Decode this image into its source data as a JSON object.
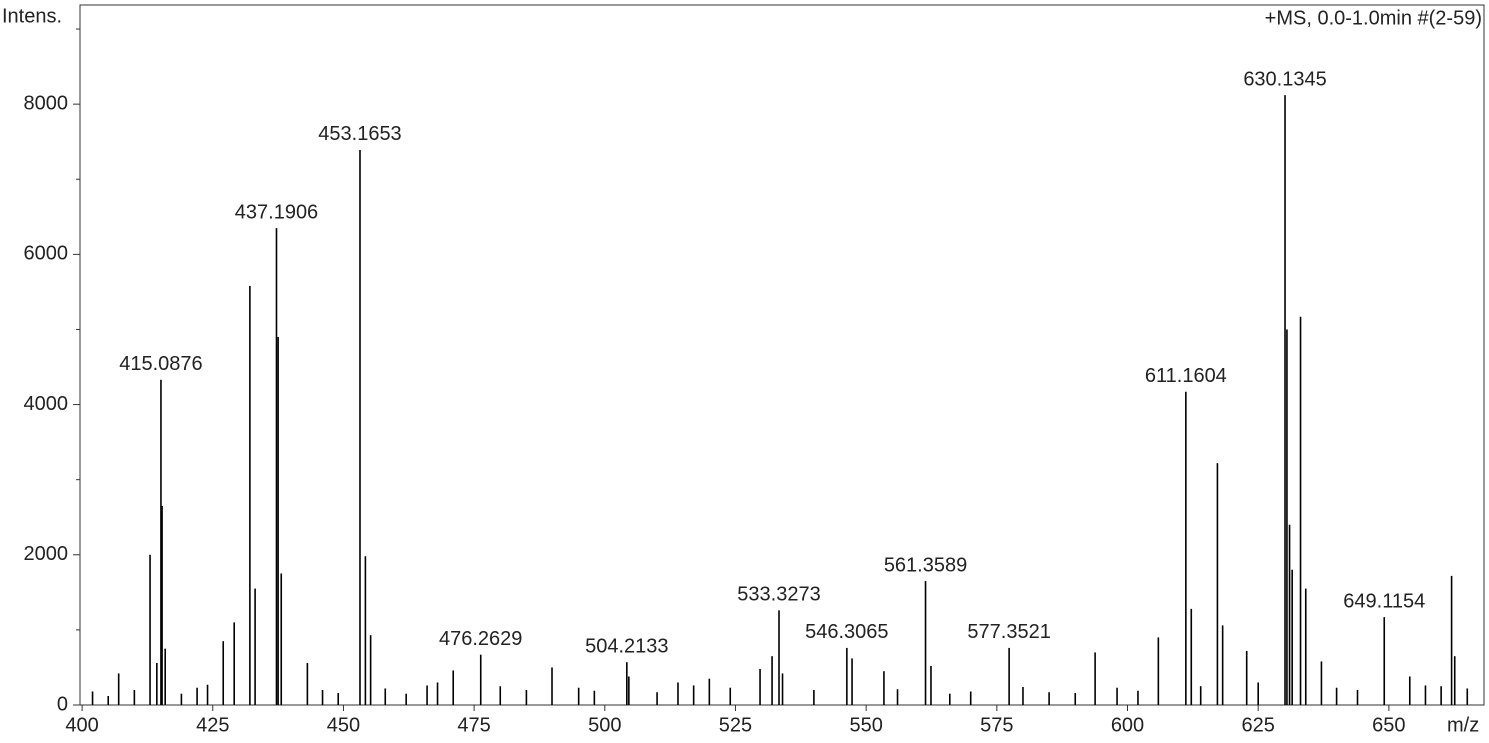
{
  "chart_data": {
    "type": "stem",
    "subtitle": "+MS, 0.0-1.0min #(2-59)",
    "y_label": "Intens.",
    "x_label": "m/z",
    "color": "#000000",
    "xlim": [
      399.6,
      668.2
    ],
    "ylim": [
      0,
      9320
    ],
    "xticks": [
      400,
      425,
      450,
      475,
      500,
      525,
      550,
      575,
      600,
      625,
      650
    ],
    "yticks": [
      0,
      2000,
      4000,
      6000,
      8000
    ],
    "yminorticks": [
      1000,
      3000,
      5000,
      7000,
      9000
    ],
    "x": [
      402,
      405,
      407,
      410,
      413,
      414.3,
      415.0876,
      415.3,
      415.9,
      419,
      422,
      424,
      427,
      429.1,
      432.1,
      433.1,
      437.1906,
      437.5,
      438.1,
      443.1,
      446,
      449,
      453.1653,
      454.2,
      455.2,
      458,
      462,
      466,
      468,
      471,
      476.2629,
      480,
      485,
      489.9,
      495,
      498,
      504.2133,
      504.6,
      510,
      514,
      517,
      520,
      524,
      529.7,
      532,
      533.3273,
      534,
      540,
      546.3065,
      547.3,
      553.4,
      556,
      561.3589,
      562.4,
      566,
      570,
      577.3521,
      580,
      585,
      590,
      593.8,
      598,
      602,
      605.9,
      611.1604,
      612.2,
      614,
      617.2,
      618.2,
      622.8,
      625,
      630.1345,
      630.5,
      631,
      631.5,
      633.1,
      634.1,
      637.1,
      640,
      644,
      649.1154,
      654,
      657,
      660,
      662,
      662.6,
      665
    ],
    "values": [
      180,
      120,
      420,
      200,
      2000,
      560,
      4330,
      2650,
      750,
      150,
      230,
      270,
      850,
      1100,
      5580,
      1550,
      6350,
      4900,
      1750,
      560,
      200,
      160,
      7390,
      1980,
      930,
      220,
      150,
      260,
      300,
      460,
      670,
      250,
      200,
      500,
      230,
      190,
      570,
      380,
      170,
      300,
      260,
      350,
      230,
      480,
      650,
      1260,
      420,
      200,
      760,
      620,
      450,
      210,
      1650,
      520,
      150,
      180,
      760,
      240,
      170,
      160,
      700,
      230,
      190,
      900,
      4170,
      1280,
      250,
      3220,
      1060,
      720,
      300,
      8120,
      5000,
      2400,
      1800,
      5170,
      1550,
      580,
      230,
      200,
      1170,
      380,
      260,
      250,
      1720,
      650,
      220
    ],
    "peak_labels": [
      null,
      null,
      null,
      null,
      null,
      null,
      "415.0876",
      null,
      null,
      null,
      null,
      null,
      null,
      null,
      null,
      null,
      "437.1906",
      null,
      null,
      null,
      null,
      null,
      "453.1653",
      null,
      null,
      null,
      null,
      null,
      null,
      null,
      "476.2629",
      null,
      null,
      null,
      null,
      null,
      "504.2133",
      null,
      null,
      null,
      null,
      null,
      null,
      null,
      null,
      "533.3273",
      null,
      null,
      "546.3065",
      null,
      null,
      null,
      "561.3589",
      null,
      null,
      null,
      "577.3521",
      null,
      null,
      null,
      null,
      null,
      null,
      null,
      "611.1604",
      null,
      null,
      null,
      null,
      null,
      null,
      "630.1345",
      null,
      null,
      null,
      null,
      null,
      null,
      null,
      null,
      "649.1154",
      null,
      null,
      null,
      null,
      null,
      null
    ]
  }
}
